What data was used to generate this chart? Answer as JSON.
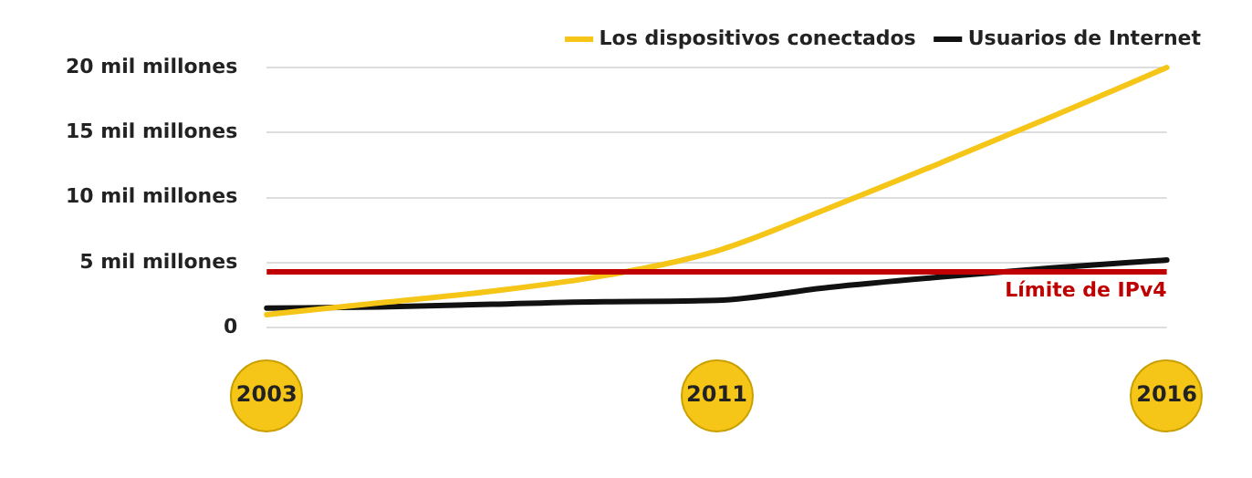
{
  "chart_data": {
    "type": "line",
    "categories": [
      "2003",
      null,
      null,
      null,
      "2011",
      null,
      null,
      null,
      "2016"
    ],
    "series": [
      {
        "name": "Los dispositivos conectados",
        "color": "#f5c518",
        "values": [
          1.0,
          1.9,
          2.8,
          4.0,
          5.9,
          9.2,
          12.7,
          16.3,
          20
        ]
      },
      {
        "name": "Usuarios de Internet",
        "color": "#111111",
        "values": [
          1.5,
          1.6,
          1.8,
          2.0,
          2.1,
          3.1,
          3.9,
          4.6,
          5.2
        ]
      }
    ],
    "ylim": [
      0,
      20
    ],
    "yticks": [
      {
        "value": 0,
        "label": "0"
      },
      {
        "value": 5,
        "label": "5 mil millones"
      },
      {
        "value": 10,
        "label": "10 mil millones"
      },
      {
        "value": 15,
        "label": "15 mil millones"
      },
      {
        "value": 20,
        "label": "20 mil millones"
      }
    ],
    "ref_lines": [
      {
        "axis": "y",
        "value": 4.3,
        "label": "Límite de IPv4",
        "color": "#c00000"
      }
    ],
    "grid": "y",
    "legend": "top right",
    "marker": "none",
    "line_style": "solid"
  }
}
